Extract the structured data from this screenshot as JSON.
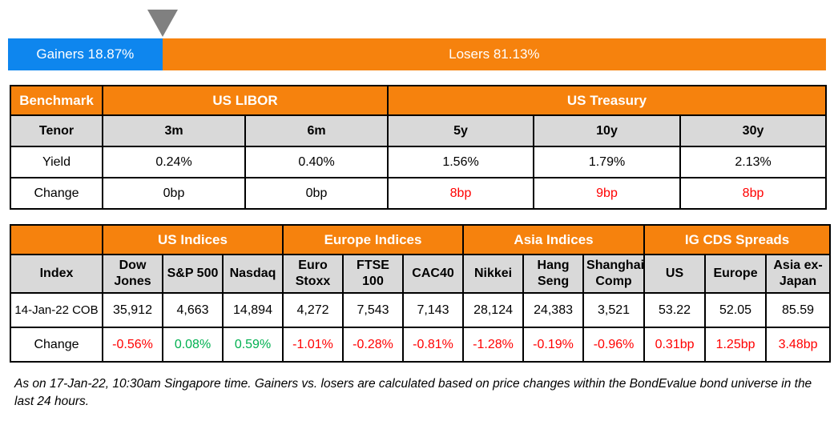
{
  "colors": {
    "gainers_blue": "#0E86EE",
    "losers_orange": "#F6820D",
    "header_orange": "#F6820D",
    "subheader_gray": "#D9D9D9",
    "marker_gray": "#808080",
    "negative_red": "#FF0000",
    "positive_green": "#00B050"
  },
  "gainers_losers": {
    "gainers_label": "Gainers 18.87%",
    "losers_label": "Losers 81.13%",
    "gainers_pct": 18.87,
    "losers_pct": 81.13
  },
  "benchmark_table": {
    "header": {
      "benchmark": "Benchmark",
      "us_libor": "US LIBOR",
      "us_treasury": "US Treasury"
    },
    "row_labels": {
      "tenor": "Tenor",
      "yield": "Yield",
      "change": "Change"
    },
    "tenors": [
      "3m",
      "6m",
      "5y",
      "10y",
      "30y"
    ],
    "yields": [
      "0.24%",
      "0.40%",
      "1.56%",
      "1.79%",
      "2.13%"
    ],
    "changes": [
      {
        "value": "0bp",
        "direction": "neutral"
      },
      {
        "value": "0bp",
        "direction": "neutral"
      },
      {
        "value": "8bp",
        "direction": "neg"
      },
      {
        "value": "9bp",
        "direction": "neg"
      },
      {
        "value": "8bp",
        "direction": "neg"
      }
    ]
  },
  "indices_table": {
    "groups": [
      "US Indices",
      "Europe Indices",
      "Asia Indices",
      "IG CDS Spreads"
    ],
    "index_label": "Index",
    "columns": [
      "Dow Jones",
      "S&P 500",
      "Nasdaq",
      "Euro Stoxx",
      "FTSE 100",
      "CAC40",
      "Nikkei",
      "Hang Seng",
      "Shanghai Comp",
      "US",
      "Europe",
      "Asia ex-Japan"
    ],
    "row1_label": "14-Jan-22 COB",
    "row1_values": [
      "35,912",
      "4,663",
      "14,894",
      "4,272",
      "7,543",
      "7,143",
      "28,124",
      "24,383",
      "3,521",
      "53.22",
      "52.05",
      "85.59"
    ],
    "row2_label": "Change",
    "row2_values": [
      {
        "value": "-0.56%",
        "direction": "neg"
      },
      {
        "value": "0.08%",
        "direction": "pos"
      },
      {
        "value": "0.59%",
        "direction": "pos"
      },
      {
        "value": "-1.01%",
        "direction": "neg"
      },
      {
        "value": "-0.28%",
        "direction": "neg"
      },
      {
        "value": "-0.81%",
        "direction": "neg"
      },
      {
        "value": "-1.28%",
        "direction": "neg"
      },
      {
        "value": "-0.19%",
        "direction": "neg"
      },
      {
        "value": "-0.96%",
        "direction": "neg"
      },
      {
        "value": "0.31bp",
        "direction": "neg"
      },
      {
        "value": "1.25bp",
        "direction": "neg"
      },
      {
        "value": "3.48bp",
        "direction": "neg"
      }
    ]
  },
  "footnote": "As on 17-Jan-22, 10:30am Singapore time. Gainers vs. losers are calculated based on price changes within the BondEvalue bond universe in the last 24 hours.",
  "chart_data": [
    {
      "type": "bar",
      "subtype": "stacked-horizontal",
      "title": "Gainers vs Losers",
      "categories": [
        "Gainers",
        "Losers"
      ],
      "values": [
        18.87,
        81.13
      ],
      "unit": "%",
      "colors": [
        "#0E86EE",
        "#F6820D"
      ],
      "annotations": [
        "gray down-pointing marker at 18.87% boundary"
      ],
      "xlim": [
        0,
        100
      ]
    },
    {
      "type": "table",
      "title": "Benchmark",
      "column_groups": [
        {
          "label": "US LIBOR",
          "columns": [
            "3m",
            "6m"
          ]
        },
        {
          "label": "US Treasury",
          "columns": [
            "5y",
            "10y",
            "30y"
          ]
        }
      ],
      "rows": [
        {
          "label": "Yield",
          "values": [
            "0.24%",
            "0.40%",
            "1.56%",
            "1.79%",
            "2.13%"
          ]
        },
        {
          "label": "Change",
          "values": [
            "0bp",
            "0bp",
            "8bp",
            "9bp",
            "8bp"
          ]
        }
      ]
    },
    {
      "type": "table",
      "title": "Indices and IG CDS Spreads",
      "column_groups": [
        {
          "label": "US Indices",
          "columns": [
            "Dow Jones",
            "S&P 500",
            "Nasdaq"
          ]
        },
        {
          "label": "Europe Indices",
          "columns": [
            "Euro Stoxx",
            "FTSE 100",
            "CAC40"
          ]
        },
        {
          "label": "Asia Indices",
          "columns": [
            "Nikkei",
            "Hang Seng",
            "Shanghai Comp"
          ]
        },
        {
          "label": "IG CDS Spreads",
          "columns": [
            "US",
            "Europe",
            "Asia ex-Japan"
          ]
        }
      ],
      "rows": [
        {
          "label": "14-Jan-22 COB",
          "values": [
            35912,
            4663,
            14894,
            4272,
            7543,
            7143,
            28124,
            24383,
            3521,
            53.22,
            52.05,
            85.59
          ]
        },
        {
          "label": "Change",
          "values": [
            "-0.56%",
            "0.08%",
            "0.59%",
            "-1.01%",
            "-0.28%",
            "-0.81%",
            "-1.28%",
            "-0.19%",
            "-0.96%",
            "0.31bp",
            "1.25bp",
            "3.48bp"
          ]
        }
      ]
    }
  ]
}
